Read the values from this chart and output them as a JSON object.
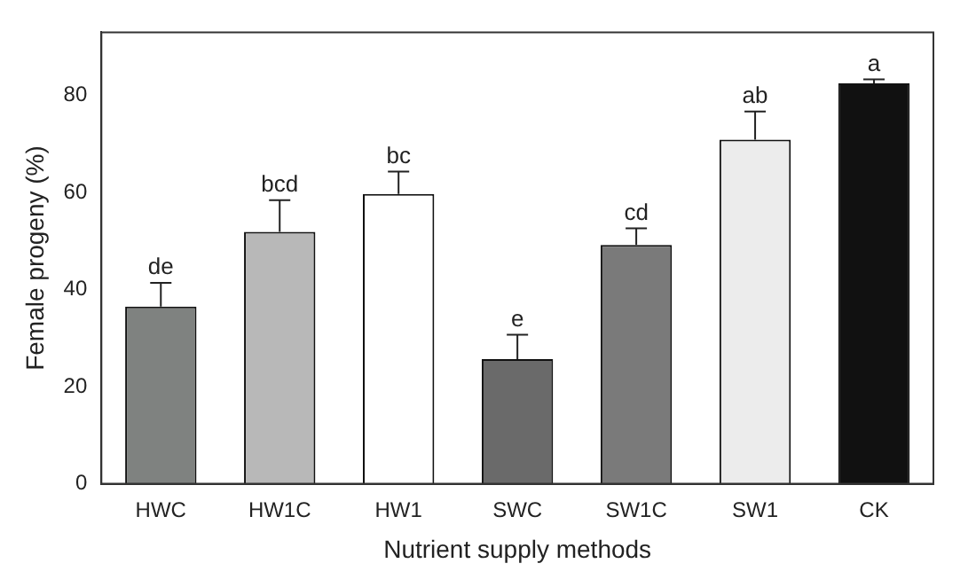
{
  "chart_data": {
    "type": "bar",
    "xlabel": "Nutrient supply methods",
    "ylabel": "Female progeny (%)",
    "categories": [
      "HWC",
      "HW1C",
      "HW1",
      "SWC",
      "SW1C",
      "SW1",
      "CK"
    ],
    "values": [
      36.5,
      51.9,
      59.7,
      25.7,
      49.2,
      70.9,
      82.5
    ],
    "colors": [
      "#7f8280",
      "#b8b8b8",
      "#ffffff",
      "#6a6a6a",
      "#7a7a7a",
      "#ececec",
      "#111111"
    ],
    "errors": [
      [
        36.5,
        41.4
      ],
      [
        51.9,
        58.4
      ],
      [
        59.7,
        64.3
      ],
      [
        25.7,
        30.7
      ],
      [
        49.2,
        52.6
      ],
      [
        70.9,
        76.7
      ],
      [
        82.5,
        83.3
      ]
    ],
    "ylim": [
      0,
      93
    ],
    "yticks": [
      0,
      20,
      40,
      60,
      80
    ],
    "grid": false,
    "legend": false,
    "annotations": [
      {
        "text": "de",
        "x": "HWC",
        "y": 41.4
      },
      {
        "text": "bcd",
        "x": "HW1C",
        "y": 58.4
      },
      {
        "text": "bc",
        "x": "HW1",
        "y": 64.3
      },
      {
        "text": "e",
        "x": "SWC",
        "y": 30.7
      },
      {
        "text": "cd",
        "x": "SW1C",
        "y": 52.6
      },
      {
        "text": "ab",
        "x": "SW1",
        "y": 76.7
      },
      {
        "text": "a",
        "x": "CK",
        "y": 83.3
      }
    ]
  }
}
